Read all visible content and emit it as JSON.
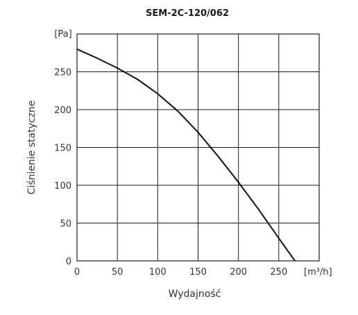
{
  "chart_data": {
    "type": "line",
    "title": "SEM-2C-120/062",
    "xlabel": "Wydajność",
    "ylabel": "Ciśnienie statyczne",
    "x_unit": "[m³/h]",
    "y_unit": "[Pa]",
    "xlim": [
      0,
      300
    ],
    "ylim": [
      0,
      300
    ],
    "x_ticks": [
      0,
      50,
      100,
      150,
      200,
      250
    ],
    "y_ticks": [
      0,
      50,
      100,
      150,
      200,
      250
    ],
    "grid": true,
    "series": [
      {
        "x": [
          0,
          25,
          50,
          75,
          100,
          125,
          150,
          175,
          200,
          225,
          250,
          270
        ],
        "y": [
          280,
          268,
          255,
          240,
          221,
          198,
          170,
          138,
          104,
          68,
          30,
          0
        ]
      }
    ]
  }
}
